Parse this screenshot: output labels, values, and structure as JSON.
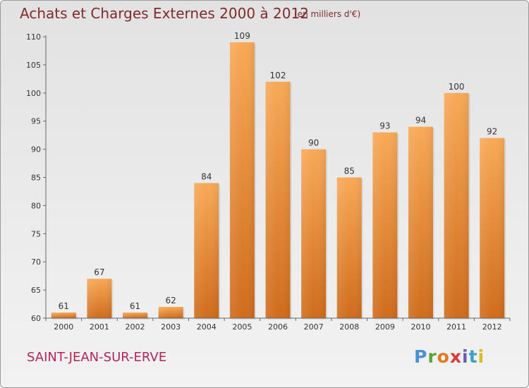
{
  "header": {
    "title": "Achats et Charges Externes 2000 à 2012",
    "unit": "(en milliers d'€)"
  },
  "footer": {
    "location": "SAINT-JEAN-SUR-ERVE",
    "brand": "Proxiti"
  },
  "colors": {
    "bar_top": "#f8a957",
    "bar_bottom": "#cf6c1c",
    "title": "#7f2b2b",
    "location": "#b3245a",
    "brand_letters": [
      "#4a90d9",
      "#5aa53a",
      "#e07a1f",
      "#d83a3a",
      "#6b5ab8",
      "#3aa0c8",
      "#e0b81f"
    ]
  },
  "chart_data": {
    "type": "bar",
    "title": "Achats et Charges Externes 2000 à 2012",
    "xlabel": "",
    "ylabel": "",
    "categories": [
      "2000",
      "2001",
      "2002",
      "2003",
      "2004",
      "2005",
      "2006",
      "2007",
      "2008",
      "2009",
      "2010",
      "2011",
      "2012"
    ],
    "values": [
      61,
      67,
      61,
      62,
      84,
      109,
      102,
      90,
      85,
      93,
      94,
      100,
      92
    ],
    "ylim": [
      60,
      110
    ],
    "yticks": [
      60,
      65,
      70,
      75,
      80,
      85,
      90,
      95,
      100,
      105,
      110
    ],
    "grid": false,
    "data_labels": true
  }
}
